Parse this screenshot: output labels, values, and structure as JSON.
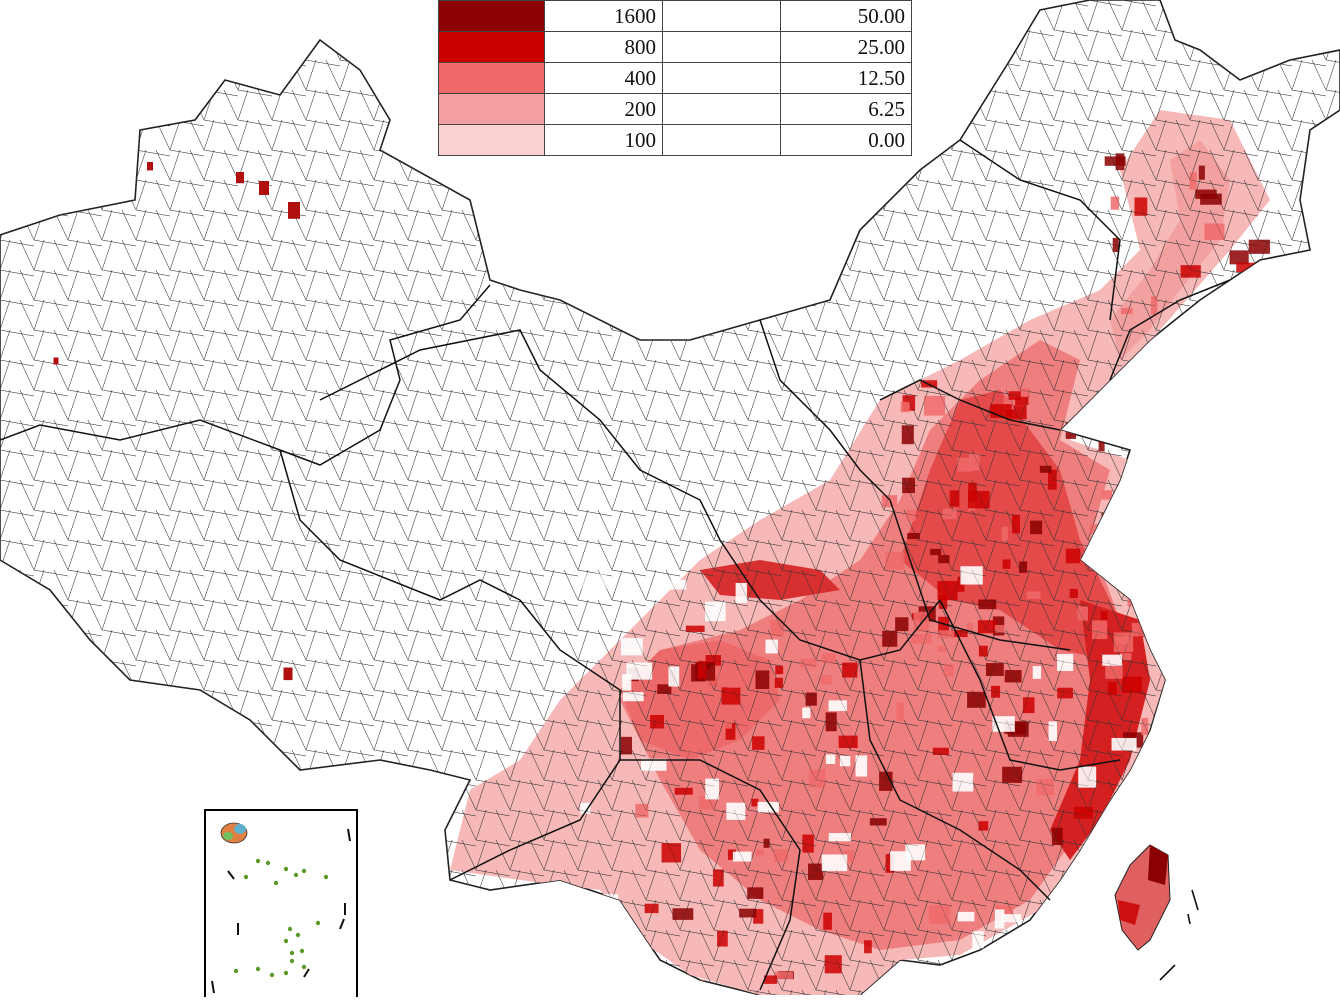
{
  "legend": {
    "rows": [
      {
        "value_a": "1600",
        "value_b": "50.00",
        "color": "#8b0000"
      },
      {
        "value_a": "800",
        "value_b": "25.00",
        "color": "#cc0000"
      },
      {
        "value_a": "400",
        "value_b": "12.50",
        "color": "#f06a6a"
      },
      {
        "value_a": "200",
        "value_b": "6.25",
        "color": "#f5a0a0"
      },
      {
        "value_a": "100",
        "value_b": "0.00",
        "color": "#fbd2d2"
      }
    ]
  },
  "map": {
    "boundary_color": "#222222",
    "background": "#ffffff",
    "palette": [
      "#fbd2d2",
      "#f5a0a0",
      "#f06a6a",
      "#cc0000",
      "#8b0000"
    ]
  },
  "inset": {
    "island_color": "#5a9a2a"
  }
}
